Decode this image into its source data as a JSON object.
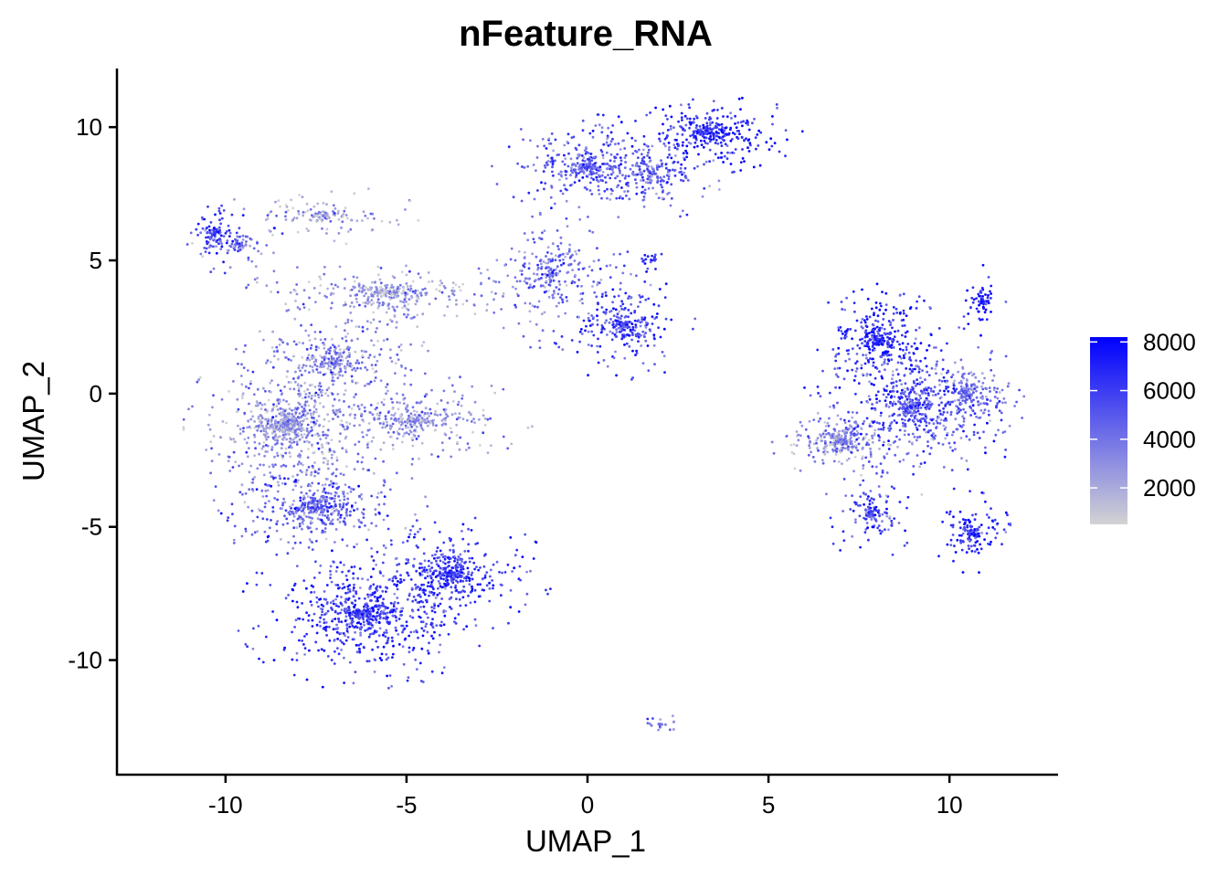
{
  "chart_data": {
    "type": "scatter",
    "title": "nFeature_RNA",
    "xlabel": "UMAP_1",
    "ylabel": "UMAP_2",
    "xlim": [
      -13,
      13
    ],
    "ylim": [
      -14.3,
      12.2
    ],
    "x_ticks": [
      -10,
      -5,
      0,
      5,
      10
    ],
    "y_ticks": [
      -10,
      -5,
      0,
      5,
      10
    ],
    "x_tick_labels": [
      "-10",
      "-5",
      "0",
      "5",
      "10"
    ],
    "y_tick_labels": [
      "-10",
      "-5",
      "0",
      "5",
      "10"
    ],
    "grid": false,
    "legend_position": "right",
    "colorbar": {
      "min": 500,
      "max": 8200,
      "ticks": [
        2000,
        4000,
        6000,
        8000
      ],
      "tick_labels": [
        "2000",
        "4000",
        "6000",
        "8000"
      ],
      "low_color": "#d3d3d3",
      "high_color": "#0000ff"
    },
    "clusters": [
      {
        "cx": -10.3,
        "cy": 6.0,
        "sx": 0.45,
        "sy": 0.7,
        "weight": 0.015,
        "value": 6000
      },
      {
        "cx": -9.6,
        "cy": 5.6,
        "sx": 0.6,
        "sy": 0.4,
        "weight": 0.01,
        "value": 4000
      },
      {
        "cx": -7.2,
        "cy": 6.7,
        "sx": 1.2,
        "sy": 0.5,
        "weight": 0.02,
        "value": 2200
      },
      {
        "cx": -8.3,
        "cy": -1.2,
        "sx": 1.3,
        "sy": 1.5,
        "weight": 0.1,
        "value": 2800
      },
      {
        "cx": -7.0,
        "cy": 1.2,
        "sx": 1.2,
        "sy": 1.0,
        "weight": 0.05,
        "value": 3200
      },
      {
        "cx": -5.5,
        "cy": 3.8,
        "sx": 1.8,
        "sy": 0.6,
        "weight": 0.05,
        "value": 2500
      },
      {
        "cx": -4.8,
        "cy": -1.0,
        "sx": 1.5,
        "sy": 0.8,
        "weight": 0.05,
        "value": 2800
      },
      {
        "cx": -7.5,
        "cy": -4.3,
        "sx": 1.4,
        "sy": 1.0,
        "weight": 0.07,
        "value": 4500
      },
      {
        "cx": -6.2,
        "cy": -8.3,
        "sx": 1.6,
        "sy": 1.3,
        "weight": 0.1,
        "value": 6000
      },
      {
        "cx": -3.8,
        "cy": -6.8,
        "sx": 1.3,
        "sy": 1.0,
        "weight": 0.06,
        "value": 6000
      },
      {
        "cx": -1.0,
        "cy": 4.5,
        "sx": 1.0,
        "sy": 1.3,
        "weight": 0.04,
        "value": 4000
      },
      {
        "cx": 0.0,
        "cy": 8.5,
        "sx": 1.2,
        "sy": 0.9,
        "weight": 0.05,
        "value": 5000
      },
      {
        "cx": 1.0,
        "cy": 2.6,
        "sx": 0.9,
        "sy": 1.0,
        "weight": 0.04,
        "value": 5800
      },
      {
        "cx": 1.8,
        "cy": 8.3,
        "sx": 1.0,
        "sy": 0.8,
        "weight": 0.03,
        "value": 4500
      },
      {
        "cx": 3.3,
        "cy": 9.8,
        "sx": 1.2,
        "sy": 0.7,
        "weight": 0.05,
        "value": 6800
      },
      {
        "cx": 1.8,
        "cy": 5.0,
        "sx": 0.25,
        "sy": 0.25,
        "weight": 0.003,
        "value": 6500
      },
      {
        "cx": 2.0,
        "cy": -12.4,
        "sx": 0.3,
        "sy": 0.2,
        "weight": 0.003,
        "value": 4000
      },
      {
        "cx": 8.0,
        "cy": 2.0,
        "sx": 0.8,
        "sy": 1.0,
        "weight": 0.05,
        "value": 6500
      },
      {
        "cx": 7.0,
        "cy": -1.8,
        "sx": 0.9,
        "sy": 0.6,
        "weight": 0.04,
        "value": 3200
      },
      {
        "cx": 9.0,
        "cy": -0.5,
        "sx": 1.4,
        "sy": 1.5,
        "weight": 0.08,
        "value": 5200
      },
      {
        "cx": 10.5,
        "cy": 0.0,
        "sx": 0.8,
        "sy": 0.8,
        "weight": 0.03,
        "value": 4000
      },
      {
        "cx": 7.8,
        "cy": -4.5,
        "sx": 0.6,
        "sy": 0.8,
        "weight": 0.02,
        "value": 5500
      },
      {
        "cx": 10.6,
        "cy": -5.2,
        "sx": 0.5,
        "sy": 0.7,
        "weight": 0.02,
        "value": 6500
      },
      {
        "cx": 10.9,
        "cy": 3.5,
        "sx": 0.3,
        "sy": 0.6,
        "weight": 0.01,
        "value": 7000
      }
    ]
  }
}
